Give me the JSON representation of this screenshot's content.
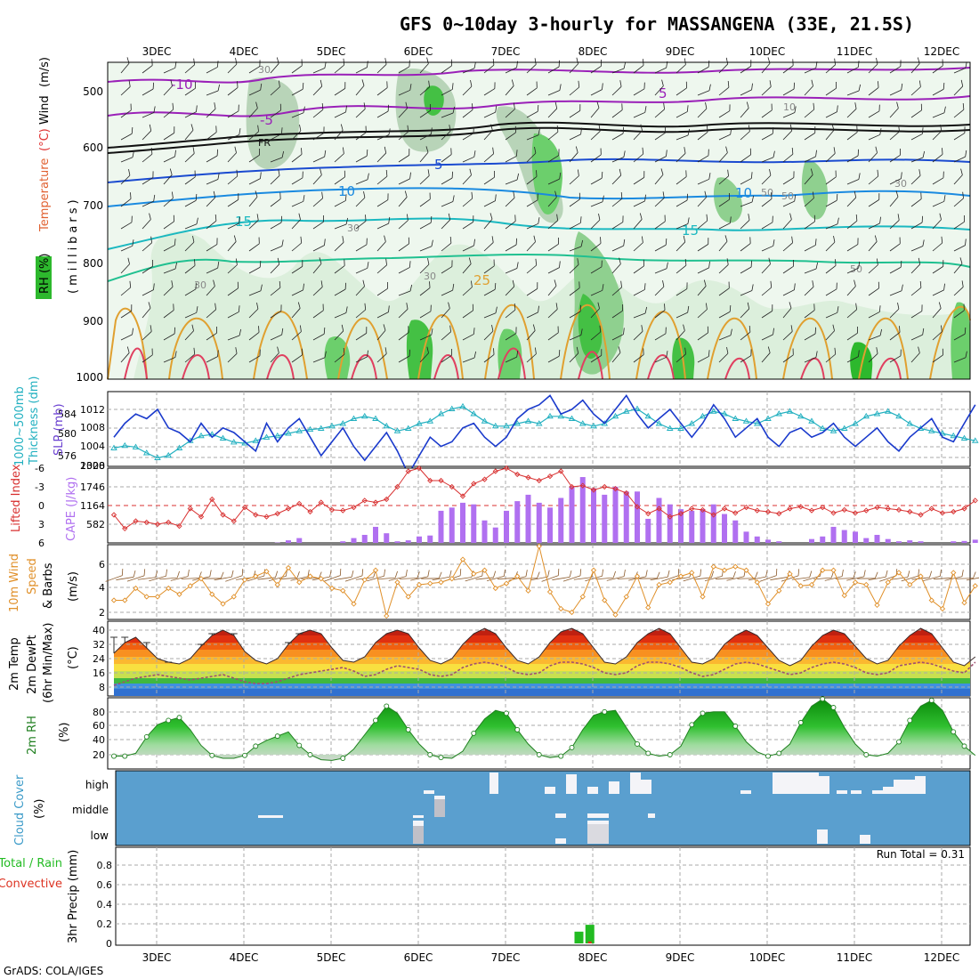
{
  "title": "GFS 0~10day 3-hourly for MASSANGENA (33E, 21.5S)",
  "credit": "GrADS: COLA/IGES",
  "colors": {
    "rh_green": "#2db82d",
    "rh_light": "#d8eed8",
    "rh_mid": "#a8c8a8",
    "slp_line": "#1a3acc",
    "thickness_line": "#22b0c0",
    "lifted_index": "#d83030",
    "cape_bar": "#b070f0",
    "wind_line": "#e0902a",
    "barb": "#8b5a2b",
    "rh2m_line": "#208020",
    "cloud_bg": "#5a9fcf",
    "cloud_fill": "#f4f4f8",
    "precip_total": "#22bb22",
    "precip_conv": "#dd3322"
  },
  "x_axis": {
    "top_ticks": [
      "3DEC",
      "4DEC",
      "5DEC",
      "6DEC",
      "7DEC",
      "8DEC",
      "9DEC",
      "10DEC",
      "11DEC",
      "12DEC"
    ],
    "bottom_ticks": [
      "3DEC",
      "4DEC",
      "5DEC",
      "6DEC",
      "7DEC",
      "8DEC",
      "9DEC",
      "10DEC",
      "11DEC",
      "12DEC"
    ]
  },
  "chart_data": [
    {
      "type": "heatmap",
      "name": "upper-air",
      "ylabel_parts": [
        "RH (%)",
        "Temperature",
        "(°C)",
        "Wind",
        "(m/s)"
      ],
      "ylabel_right": "(millibars)",
      "y_ticks": [
        "500",
        "600",
        "700",
        "800",
        "900",
        "1000"
      ],
      "ylim": [
        1000,
        450
      ],
      "temperature_labels": [
        "-10",
        "-5",
        "FR",
        "5",
        "5",
        "10",
        "10",
        "15",
        "15",
        "25"
      ],
      "rh_labels": [
        "30",
        "30",
        "30",
        "10",
        "50",
        "50",
        "30",
        "50",
        "30"
      ]
    },
    {
      "type": "line",
      "name": "slp-thickness",
      "ylabel_left": [
        "1000~500mb",
        "Thickness (dm)"
      ],
      "ylabel_right": "SLP (mb)",
      "left_ticks": [
        "584",
        "580",
        "576"
      ],
      "right_ticks": [
        "1012",
        "1008",
        "1004",
        "1000"
      ],
      "slp": [
        1006,
        1009,
        1011,
        1010,
        1012,
        1008,
        1007,
        1005,
        1009,
        1006,
        1008,
        1007,
        1005,
        1003,
        1009,
        1005,
        1008,
        1010,
        1006,
        1002,
        1005,
        1008,
        1004,
        1001,
        1004,
        1007,
        1003,
        998,
        1002,
        1006,
        1004,
        1005,
        1008,
        1009,
        1006,
        1004,
        1006,
        1010,
        1012,
        1013,
        1015,
        1011,
        1012,
        1014,
        1011,
        1009,
        1012,
        1015,
        1011,
        1008,
        1010,
        1012,
        1009,
        1006,
        1009,
        1013,
        1010,
        1006,
        1008,
        1010,
        1006,
        1004,
        1007,
        1008,
        1006,
        1007,
        1009,
        1006,
        1004,
        1006,
        1008,
        1005,
        1003,
        1006,
        1008,
        1010,
        1006,
        1005,
        1009,
        1013
      ],
      "thickness": [
        577.0,
        577.5,
        577.2,
        576.0,
        575.0,
        575.5,
        577.0,
        578.5,
        579.5,
        579.8,
        579.0,
        578.2,
        578.0,
        578.5,
        579.2,
        579.5,
        580.0,
        580.5,
        580.8,
        581.0,
        581.5,
        582.0,
        583.0,
        583.5,
        583.0,
        581.5,
        580.5,
        581.0,
        582.0,
        582.5,
        584.0,
        585.0,
        585.5,
        584.0,
        582.5,
        581.5,
        581.5,
        582.0,
        582.5,
        582.0,
        583.5,
        583.5,
        583.0,
        582.0,
        581.5,
        582.0,
        583.5,
        584.5,
        585.0,
        583.5,
        582.0,
        581.0,
        581.0,
        582.0,
        583.5,
        584.5,
        584.0,
        583.0,
        582.5,
        582.0,
        583.0,
        584.0,
        584.5,
        583.5,
        582.5,
        581.0,
        580.5,
        581.0,
        582.0,
        583.5,
        584.0,
        584.5,
        583.5,
        582.0,
        581.0,
        580.5,
        580.0,
        579.5,
        579.0,
        578.5
      ]
    },
    {
      "type": "bar",
      "name": "lifted-index-cape",
      "ylabel_left": "Lifted Index",
      "ylabel_right": "CAPE (J/kg)",
      "li_ticks": [
        "-3",
        "0",
        "3",
        "6"
      ],
      "li_top_tick": "-6",
      "cape_ticks": [
        "1746",
        "1164",
        "582"
      ],
      "cape_top_tick": "2328",
      "lifted_index": [
        1.5,
        3.7,
        2.5,
        2.7,
        3.0,
        2.7,
        3.3,
        0.5,
        1.8,
        -1.0,
        1.5,
        2.5,
        0.3,
        1.5,
        1.8,
        1.3,
        0.5,
        -0.3,
        1.0,
        -0.5,
        0.7,
        0.8,
        0.3,
        -0.8,
        -0.5,
        -1.0,
        -3.0,
        -5.5,
        -6.5,
        -4.0,
        -4.0,
        -3.0,
        -1.5,
        -3.5,
        -4.2,
        -5.5,
        -6.2,
        -5.0,
        -4.5,
        -4.0,
        -4.7,
        -5.5,
        -3.0,
        -3.2,
        -2.5,
        -3.0,
        -2.7,
        -2.0,
        0.2,
        1.3,
        0.5,
        1.8,
        1.3,
        0.5,
        0.7,
        1.5,
        0.5,
        1.2,
        0.3,
        0.8,
        1.0,
        1.3,
        0.5,
        0.2,
        0.8,
        0.3,
        1.2,
        0.7,
        1.2,
        0.8,
        0.3,
        0.5,
        0.7,
        1.0,
        1.5,
        0.5,
        1.2,
        1.0,
        0.5,
        -0.8
      ],
      "cape": [
        0,
        0,
        0,
        0,
        0,
        0,
        0,
        0,
        0,
        0,
        0,
        0,
        0,
        0,
        0,
        10,
        80,
        150,
        0,
        0,
        0,
        50,
        150,
        250,
        500,
        300,
        50,
        80,
        200,
        230,
        1000,
        1100,
        1250,
        1200,
        700,
        480,
        1000,
        1300,
        1500,
        1250,
        1100,
        1400,
        1750,
        2050,
        1700,
        1500,
        1750,
        1600,
        1600,
        750,
        1400,
        1200,
        1050,
        1000,
        1050,
        1200,
        900,
        700,
        350,
        200,
        100,
        50,
        0,
        0,
        120,
        200,
        500,
        400,
        350,
        150,
        250,
        120,
        50,
        80,
        50,
        0,
        0,
        50,
        60,
        100
      ]
    },
    {
      "type": "line",
      "name": "wind",
      "ylabel": [
        "10m Wind",
        "Speed",
        "& Barbs"
      ],
      "ylabel_units": "(m/s)",
      "y_ticks": [
        "6",
        "4",
        "2"
      ],
      "ylim": [
        1.5,
        7.5
      ],
      "speed": [
        3.0,
        3.0,
        4.0,
        3.3,
        3.3,
        4.0,
        3.5,
        4.2,
        4.8,
        3.5,
        2.7,
        3.3,
        4.7,
        5.0,
        5.4,
        4.3,
        5.7,
        4.5,
        5.0,
        4.8,
        4.0,
        3.8,
        2.7,
        4.7,
        5.5,
        1.7,
        4.5,
        3.3,
        4.3,
        4.4,
        4.5,
        4.8,
        6.4,
        5.2,
        5.5,
        4.0,
        4.4,
        5.0,
        3.8,
        7.5,
        3.7,
        2.3,
        2.0,
        3.3,
        5.5,
        3.0,
        1.8,
        3.3,
        5.0,
        2.4,
        4.3,
        4.5,
        5.0,
        5.3,
        3.3,
        5.8,
        5.5,
        5.8,
        5.5,
        4.5,
        2.7,
        3.8,
        5.2,
        4.2,
        4.3,
        5.5,
        5.5,
        3.4,
        4.5,
        4.3,
        2.6,
        4.5,
        5.3,
        4.3,
        5.0,
        3.0,
        2.3,
        5.3,
        2.8,
        4.2
      ]
    },
    {
      "type": "area",
      "name": "2m-temperature",
      "ylabel": [
        "2m Temp",
        "2m DewPt",
        "(6hr Min/Max)"
      ],
      "ylabel_units": "(°C)",
      "y_ticks": [
        "40",
        "32",
        "24",
        "16",
        "8"
      ],
      "ylim": [
        4,
        44
      ],
      "temp": [
        27,
        33,
        36,
        30,
        24,
        22,
        21,
        24,
        31,
        37,
        40,
        37,
        28,
        23,
        21,
        24,
        32,
        38,
        40,
        38,
        30,
        23,
        22,
        25,
        33,
        38,
        40,
        38,
        30,
        23,
        21,
        24,
        32,
        38,
        41,
        38,
        30,
        23,
        21,
        25,
        33,
        39,
        41,
        38,
        30,
        22,
        21,
        25,
        33,
        38,
        41,
        38,
        30,
        22,
        21,
        24,
        32,
        37,
        40,
        37,
        30,
        23,
        20,
        23,
        31,
        37,
        40,
        38,
        31,
        24,
        21,
        23,
        31,
        37,
        41,
        38,
        30,
        22,
        20,
        25
      ],
      "dewpoint": [
        9,
        11,
        13,
        14,
        15,
        14,
        13,
        12,
        13,
        14,
        15,
        13,
        11,
        10,
        10,
        11,
        13,
        15,
        16,
        17,
        18,
        19,
        17,
        14,
        15,
        18,
        20,
        19,
        18,
        15,
        14,
        15,
        19,
        21,
        22,
        21,
        19,
        16,
        15,
        16,
        20,
        22,
        22,
        21,
        19,
        16,
        15,
        16,
        20,
        22,
        22,
        21,
        19,
        16,
        14,
        15,
        18,
        21,
        22,
        21,
        19,
        17,
        15,
        16,
        19,
        21,
        22,
        21,
        19,
        16,
        15,
        16,
        20,
        21,
        22,
        21,
        19,
        17,
        16,
        22
      ],
      "max_6hr": [
        36,
        36,
        null,
        33,
        null,
        22,
        null,
        null,
        32,
        38,
        null,
        38,
        null,
        null,
        null,
        null,
        33,
        38,
        null,
        null,
        null,
        null,
        null,
        null,
        null,
        null,
        null,
        null,
        null,
        null,
        null,
        null,
        null,
        null,
        null,
        null,
        null,
        null,
        null,
        null,
        null,
        null,
        null,
        null,
        null,
        null,
        null,
        null,
        null,
        null,
        null,
        null,
        null,
        null,
        null,
        null,
        null,
        null,
        null,
        null,
        null,
        null,
        null,
        null,
        null,
        null,
        null,
        null,
        null,
        null,
        null,
        null,
        null,
        null,
        null,
        null,
        null,
        null,
        null,
        null
      ]
    },
    {
      "type": "area",
      "name": "2m-rh",
      "ylabel": "2m RH",
      "ylabel_units": "(%)",
      "y_ticks": [
        "80",
        "60",
        "40",
        "20"
      ],
      "ylim": [
        8,
        100
      ],
      "rh": [
        18,
        18,
        22,
        45,
        62,
        68,
        72,
        55,
        33,
        19,
        15,
        15,
        19,
        32,
        40,
        46,
        52,
        33,
        20,
        13,
        12,
        15,
        28,
        48,
        68,
        88,
        78,
        55,
        35,
        20,
        16,
        15,
        25,
        50,
        70,
        82,
        78,
        55,
        35,
        20,
        16,
        18,
        30,
        55,
        75,
        80,
        82,
        58,
        35,
        22,
        18,
        20,
        32,
        62,
        78,
        80,
        80,
        60,
        38,
        24,
        18,
        22,
        35,
        65,
        88,
        98,
        86,
        58,
        35,
        20,
        18,
        22,
        38,
        68,
        88,
        96,
        82,
        52,
        32,
        19
      ]
    },
    {
      "type": "heatmap",
      "name": "cloud-cover",
      "ylabel": "Cloud Cover",
      "ylabel_units": "(%)",
      "levels": [
        "high",
        "middle",
        "low"
      ]
    },
    {
      "type": "bar",
      "name": "precip",
      "ylabel_left": [
        "Total / Rain",
        "Convective"
      ],
      "ylabel_right": "3hr Precip (mm)",
      "y_ticks": [
        "0.8",
        "0.6",
        "0.4",
        "0.2",
        "0"
      ],
      "ylim": [
        0,
        1.0
      ],
      "run_total_label": "Run Total = 0.31",
      "bars": [
        {
          "x_index": 42,
          "total": 0.12,
          "convective": 0.0
        },
        {
          "x_index": 43,
          "total": 0.19,
          "convective": 0.05
        }
      ]
    }
  ]
}
